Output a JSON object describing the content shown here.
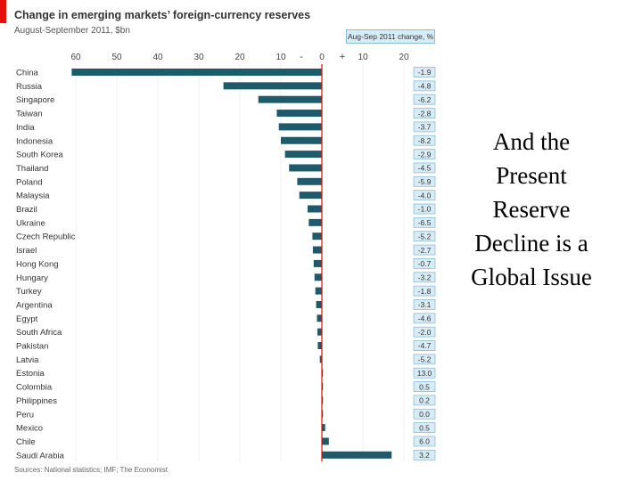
{
  "header": {
    "title": "Change in emerging markets’ foreign-currency reserves",
    "subtitle": "August-September 2011, $bn",
    "change_column_label": "Aug-Sep 2011 change, %"
  },
  "footer": {
    "source": "Sources: National statistics; IMF; The Economist"
  },
  "side_text": "And the Present Reserve Decline is a Global Issue",
  "colors": {
    "bar": "#1f5a6b",
    "zero_line": "#e3120b",
    "badge_fill": "#d8ecf6",
    "badge_border": "#8fbcd6",
    "accent": "#e3120b"
  },
  "chart_data": {
    "type": "bar",
    "orientation": "horizontal",
    "title": "Change in emerging markets’ foreign-currency reserves",
    "subtitle": "August-September 2011, $bn",
    "xlabel": "",
    "ylabel": "",
    "xlim": [
      -60,
      20
    ],
    "x_ticks": [
      60,
      50,
      40,
      30,
      20,
      10,
      "-",
      0,
      "+",
      10,
      20
    ],
    "categories": [
      "China",
      "Russia",
      "Singapore",
      "Taiwan",
      "India",
      "Indonesia",
      "South Korea",
      "Thailand",
      "Poland",
      "Malaysia",
      "Brazil",
      "Ukraine",
      "Czech Republic",
      "Israel",
      "Hong Kong",
      "Hungary",
      "Turkey",
      "Argentina",
      "Egypt",
      "South Africa",
      "Pakistan",
      "Latvia",
      "Estonia",
      "Colombia",
      "Philippines",
      "Peru",
      "Mexico",
      "Chile",
      "Saudi Arabia"
    ],
    "series": [
      {
        "name": "Change, $bn",
        "values": [
          -61,
          -24,
          -15.5,
          -11,
          -10.5,
          -10,
          -9,
          -8,
          -6,
          -5.5,
          -3.5,
          -3.2,
          -2.3,
          -2.2,
          -2.0,
          -1.8,
          -1.6,
          -1.4,
          -1.2,
          -1.1,
          -1.0,
          -0.5,
          0.1,
          0.2,
          0.2,
          0.2,
          0.8,
          1.7,
          17
        ]
      },
      {
        "name": "Aug-Sep 2011 change, %",
        "labels": [
          "-1.9",
          "-4.8",
          "-6.2",
          "-2.8",
          "-3.7",
          "-8.2",
          "-2.9",
          "-4.5",
          "-5.9",
          "-4.0",
          "-1.0",
          "-6.5",
          "-5.2",
          "-2.7",
          "-0.7",
          "-3.2",
          "-1.8",
          "-3.1",
          "-4.6",
          "-2.0",
          "-4.7",
          "-5.2",
          "13.0",
          "0.5",
          "0.2",
          "0.0",
          "0.5",
          "6.0",
          "3.2"
        ]
      }
    ]
  }
}
